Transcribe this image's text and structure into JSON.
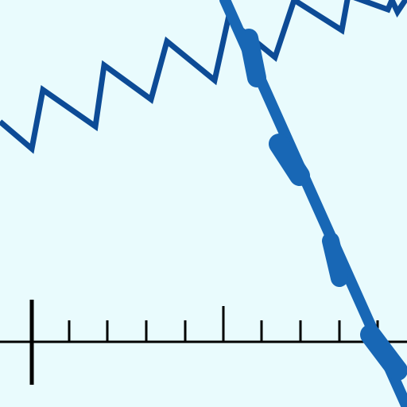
{
  "colors": {
    "background": "#e9fbfd",
    "zigzag_line": "#0d4b96",
    "thick_line": "#1867b5",
    "axis": "#000000"
  },
  "elements": {
    "axis": {
      "orientation": "horizontal",
      "minor_tick_count": 9,
      "major_tick_every": 5
    },
    "zigzag": {
      "style": "sawtooth",
      "trend": "rising"
    },
    "steep_line": {
      "style": "thick with bulges",
      "trend": "falling"
    }
  }
}
